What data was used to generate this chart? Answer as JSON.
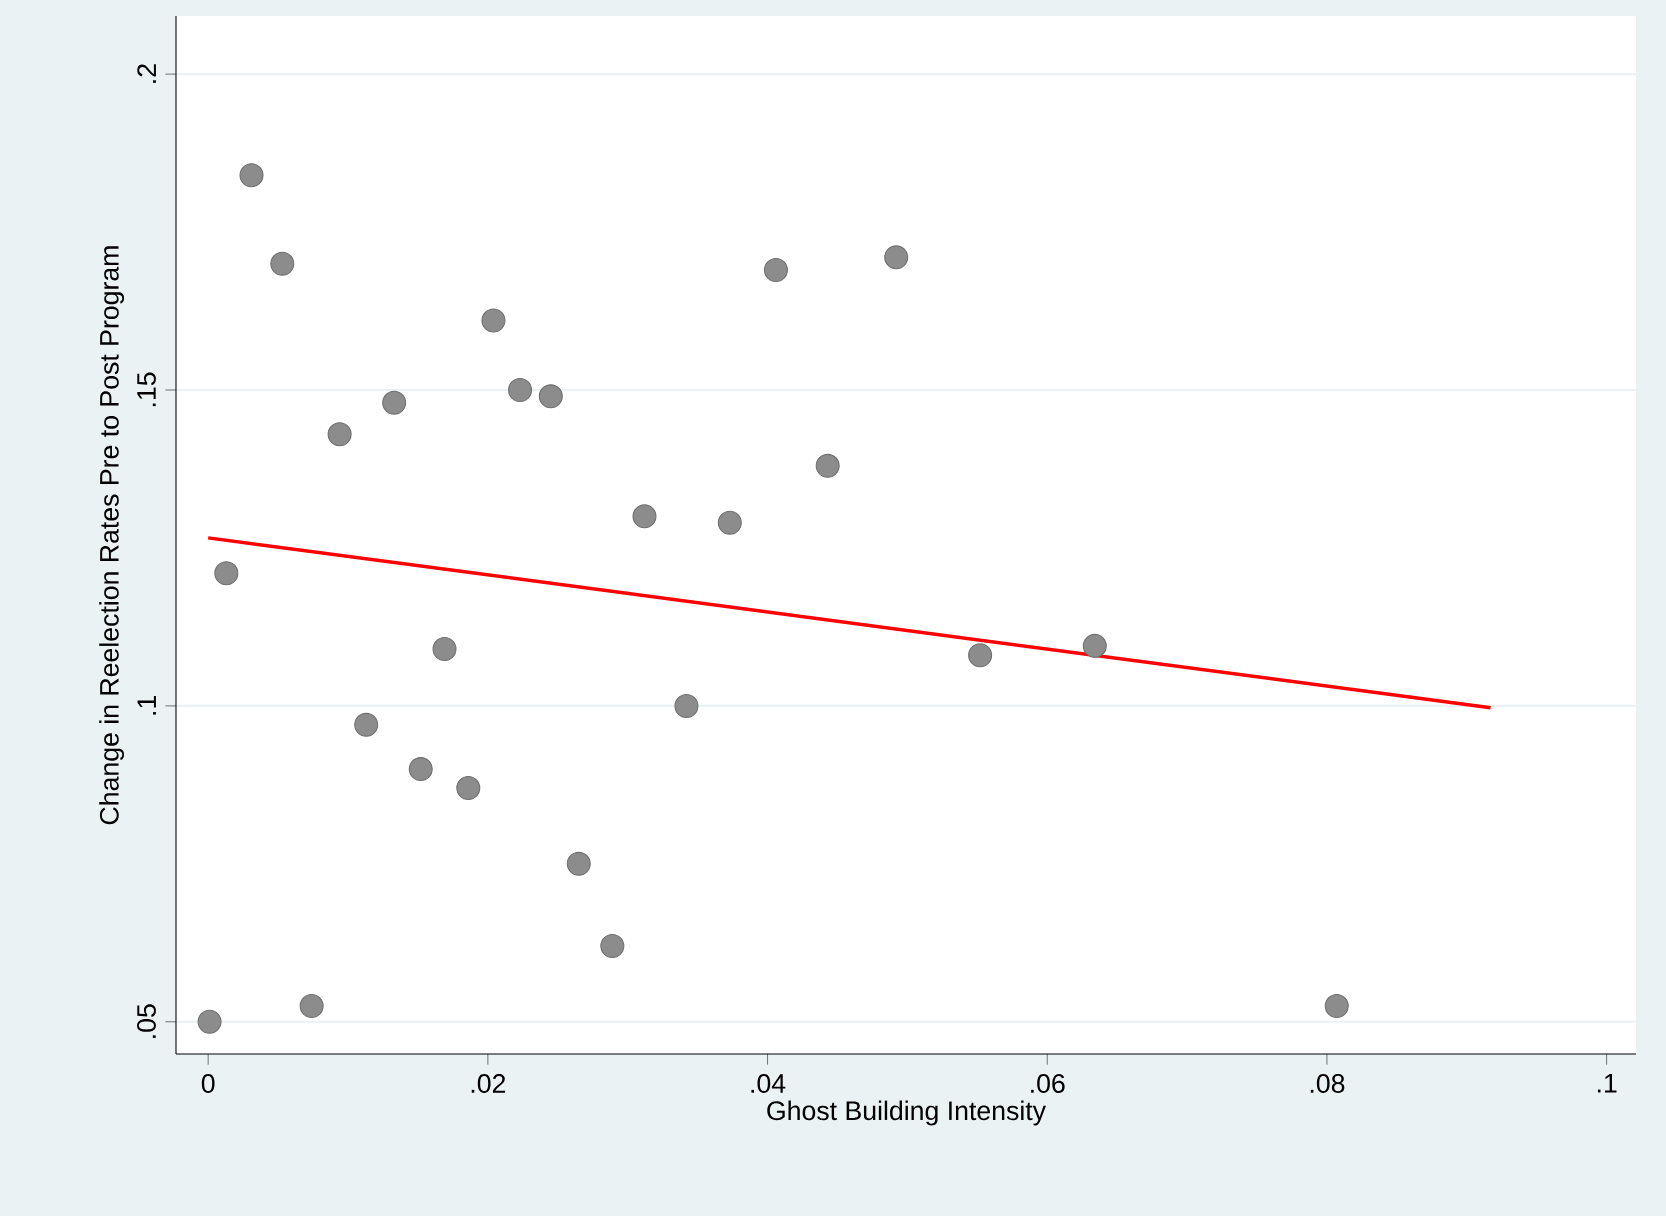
{
  "chart_data": {
    "type": "scatter",
    "xlabel": "Ghost Building Intensity",
    "ylabel": "Change in Reelection Rates Pre to Post Program",
    "xlim": [
      -0.0023,
      0.1021
    ],
    "ylim": [
      0.0449,
      0.2092
    ],
    "xticks": [
      0,
      {
        "value": 0.02,
        "label": ".02"
      },
      {
        "value": 0.04,
        "label": ".04"
      },
      {
        "value": 0.06,
        "label": ".06"
      },
      {
        "value": 0.08,
        "label": ".08"
      },
      {
        "value": 0.1,
        "label": ".1"
      }
    ],
    "yticks": [
      {
        "value": 0.05,
        "label": ".05"
      },
      {
        "value": 0.1,
        "label": ".1"
      },
      {
        "value": 0.15,
        "label": ".15"
      },
      {
        "value": 0.2,
        "label": ".2"
      }
    ],
    "grid": "y",
    "series": [
      {
        "type": "scatter",
        "marker": "circle",
        "color": "#8c8c8c",
        "x": [
          0.0001,
          0.0013,
          0.0031,
          0.0053,
          0.0074,
          0.0094,
          0.0113,
          0.0133,
          0.0152,
          0.0169,
          0.0186,
          0.0204,
          0.0223,
          0.0245,
          0.0265,
          0.0289,
          0.0312,
          0.0342,
          0.0373,
          0.0406,
          0.0443,
          0.0492,
          0.0552,
          0.0634,
          0.0807
        ],
        "values": [
          0.05,
          0.121,
          0.184,
          0.17,
          0.0525,
          0.143,
          0.097,
          0.148,
          0.09,
          0.109,
          0.087,
          0.161,
          0.15,
          0.149,
          0.075,
          0.062,
          0.13,
          0.1,
          0.129,
          0.169,
          0.138,
          0.171,
          0.108,
          0.1095,
          0.0525
        ]
      },
      {
        "type": "line",
        "color": "#ff0000",
        "x": [
          0,
          0.0917
        ],
        "values": [
          0.1266,
          0.0997
        ]
      }
    ]
  }
}
